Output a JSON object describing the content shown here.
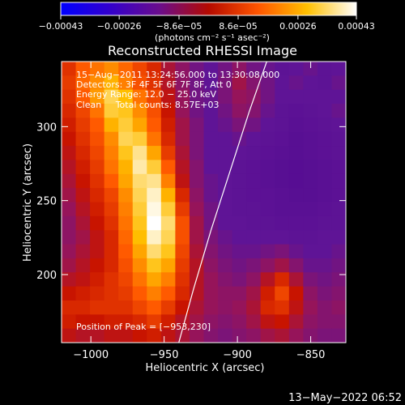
{
  "chart_data": {
    "type": "heatmap",
    "title": "Reconstructed RHESSI Image",
    "xlabel": "Heliocentric X (arcsec)",
    "ylabel": "Heliocentric Y (arcsec)",
    "xlim": [
      -1020,
      -826
    ],
    "ylim": [
      154,
      344
    ],
    "x_ticks": [
      {
        "value": -1000,
        "label": "−1000"
      },
      {
        "value": -950,
        "label": "−950"
      },
      {
        "value": -900,
        "label": "−900"
      },
      {
        "value": -850,
        "label": "−850"
      }
    ],
    "y_ticks": [
      {
        "value": 200,
        "label": "200"
      },
      {
        "value": 250,
        "label": "250"
      },
      {
        "value": 300,
        "label": "300"
      }
    ],
    "colorbar": {
      "range": [
        -0.00043,
        0.00043
      ],
      "ticks": [
        {
          "value": -0.00043,
          "label": "−0.00043"
        },
        {
          "value": -0.00026,
          "label": "−0.00026"
        },
        {
          "value": -8.6e-05,
          "label": "−8.6e−05"
        },
        {
          "value": 8.6e-05,
          "label": "8.6e−05"
        },
        {
          "value": 0.00026,
          "label": "0.00026"
        },
        {
          "value": 0.00043,
          "label": "0.00043"
        }
      ],
      "colors": [
        "#0000ff",
        "#3300cc",
        "#6a0d8c",
        "#b50a00",
        "#ff5500",
        "#ffc000",
        "#ffffff"
      ],
      "unit_label": "(photons cm⁻² s⁻¹ asec⁻²)"
    },
    "annotations": [
      "15−Aug−2011 13:24:56.000 to 13:30:08.000",
      "Detectors: 3F 4F 5F 6F 7F 8F, Att 0",
      "Energy Range: 12.0 − 25.0 keV",
      "Clean     Total counts: 8.57E+03"
    ],
    "peak_label": "Position of Peak = [−953,230]",
    "peak_position": [
      -953,
      230
    ],
    "limb": [
      [
        -940,
        154
      ],
      [
        -930,
        190
      ],
      [
        -918,
        230
      ],
      [
        -905,
        270
      ],
      [
        -892,
        310
      ],
      [
        -880,
        344
      ]
    ],
    "image_grid": {
      "note": "coarse emission map, normalized 0..1 (0 = min, 1 = max)",
      "rows_top_to_bottom": [
        [
          0.58,
          0.66,
          0.7,
          0.74,
          0.68,
          0.62,
          0.56,
          0.46,
          0.4,
          0.34,
          0.3,
          0.34,
          0.4,
          0.34,
          0.32,
          0.28,
          0.3,
          0.32,
          0.28,
          0.3
        ],
        [
          0.6,
          0.68,
          0.74,
          0.8,
          0.72,
          0.64,
          0.58,
          0.48,
          0.4,
          0.34,
          0.3,
          0.36,
          0.44,
          0.38,
          0.34,
          0.3,
          0.32,
          0.3,
          0.28,
          0.32
        ],
        [
          0.58,
          0.66,
          0.76,
          0.88,
          0.82,
          0.7,
          0.62,
          0.5,
          0.42,
          0.34,
          0.32,
          0.36,
          0.42,
          0.4,
          0.34,
          0.3,
          0.3,
          0.3,
          0.3,
          0.3
        ],
        [
          0.56,
          0.62,
          0.7,
          0.86,
          0.84,
          0.74,
          0.64,
          0.52,
          0.42,
          0.34,
          0.3,
          0.34,
          0.4,
          0.38,
          0.32,
          0.28,
          0.26,
          0.28,
          0.3,
          0.32
        ],
        [
          0.54,
          0.6,
          0.66,
          0.8,
          0.86,
          0.78,
          0.66,
          0.54,
          0.44,
          0.36,
          0.3,
          0.32,
          0.36,
          0.34,
          0.3,
          0.28,
          0.24,
          0.26,
          0.28,
          0.3
        ],
        [
          0.52,
          0.58,
          0.64,
          0.74,
          0.88,
          0.86,
          0.7,
          0.56,
          0.44,
          0.36,
          0.3,
          0.3,
          0.32,
          0.3,
          0.28,
          0.26,
          0.22,
          0.24,
          0.26,
          0.28
        ],
        [
          0.5,
          0.56,
          0.62,
          0.72,
          0.84,
          0.92,
          0.78,
          0.6,
          0.46,
          0.36,
          0.3,
          0.3,
          0.3,
          0.28,
          0.26,
          0.24,
          0.22,
          0.24,
          0.26,
          0.28
        ],
        [
          0.48,
          0.54,
          0.6,
          0.7,
          0.8,
          0.94,
          0.86,
          0.66,
          0.48,
          0.38,
          0.3,
          0.3,
          0.28,
          0.26,
          0.24,
          0.22,
          0.2,
          0.22,
          0.24,
          0.26
        ],
        [
          0.46,
          0.52,
          0.58,
          0.66,
          0.78,
          0.9,
          0.92,
          0.72,
          0.5,
          0.38,
          0.32,
          0.3,
          0.28,
          0.26,
          0.24,
          0.22,
          0.2,
          0.22,
          0.24,
          0.26
        ],
        [
          0.44,
          0.5,
          0.56,
          0.62,
          0.74,
          0.88,
          0.96,
          0.8,
          0.56,
          0.4,
          0.32,
          0.3,
          0.28,
          0.26,
          0.26,
          0.24,
          0.22,
          0.22,
          0.24,
          0.26
        ],
        [
          0.42,
          0.48,
          0.54,
          0.6,
          0.72,
          0.86,
          0.98,
          0.86,
          0.6,
          0.42,
          0.34,
          0.3,
          0.28,
          0.28,
          0.26,
          0.24,
          0.24,
          0.24,
          0.26,
          0.28
        ],
        [
          0.4,
          0.46,
          0.52,
          0.58,
          0.7,
          0.84,
          1.0,
          0.9,
          0.64,
          0.44,
          0.34,
          0.3,
          0.3,
          0.28,
          0.28,
          0.26,
          0.26,
          0.26,
          0.28,
          0.28
        ],
        [
          0.4,
          0.44,
          0.5,
          0.56,
          0.68,
          0.82,
          0.96,
          0.88,
          0.64,
          0.44,
          0.36,
          0.32,
          0.3,
          0.3,
          0.3,
          0.3,
          0.28,
          0.28,
          0.3,
          0.3
        ],
        [
          0.42,
          0.46,
          0.5,
          0.56,
          0.66,
          0.78,
          0.9,
          0.84,
          0.62,
          0.46,
          0.38,
          0.34,
          0.32,
          0.32,
          0.34,
          0.36,
          0.32,
          0.3,
          0.3,
          0.32
        ],
        [
          0.44,
          0.48,
          0.52,
          0.56,
          0.64,
          0.74,
          0.84,
          0.78,
          0.6,
          0.48,
          0.4,
          0.36,
          0.34,
          0.36,
          0.4,
          0.44,
          0.38,
          0.32,
          0.32,
          0.34
        ],
        [
          0.48,
          0.5,
          0.54,
          0.58,
          0.62,
          0.7,
          0.78,
          0.72,
          0.58,
          0.48,
          0.42,
          0.38,
          0.36,
          0.4,
          0.48,
          0.56,
          0.46,
          0.36,
          0.34,
          0.36
        ],
        [
          0.52,
          0.54,
          0.56,
          0.58,
          0.6,
          0.66,
          0.72,
          0.66,
          0.56,
          0.48,
          0.42,
          0.4,
          0.4,
          0.44,
          0.54,
          0.62,
          0.52,
          0.4,
          0.36,
          0.38
        ],
        [
          0.56,
          0.56,
          0.58,
          0.58,
          0.58,
          0.62,
          0.66,
          0.6,
          0.52,
          0.46,
          0.42,
          0.4,
          0.42,
          0.46,
          0.56,
          0.58,
          0.5,
          0.42,
          0.38,
          0.4
        ],
        [
          0.54,
          0.52,
          0.52,
          0.54,
          0.54,
          0.56,
          0.6,
          0.54,
          0.48,
          0.44,
          0.4,
          0.38,
          0.4,
          0.44,
          0.5,
          0.52,
          0.46,
          0.4,
          0.38,
          0.38
        ],
        [
          0.5,
          0.48,
          0.48,
          0.5,
          0.5,
          0.52,
          0.54,
          0.5,
          0.46,
          0.42,
          0.38,
          0.36,
          0.38,
          0.4,
          0.44,
          0.46,
          0.42,
          0.38,
          0.36,
          0.36
        ]
      ]
    }
  },
  "footer": {
    "timestamp": "13−May−2022 06:52"
  }
}
